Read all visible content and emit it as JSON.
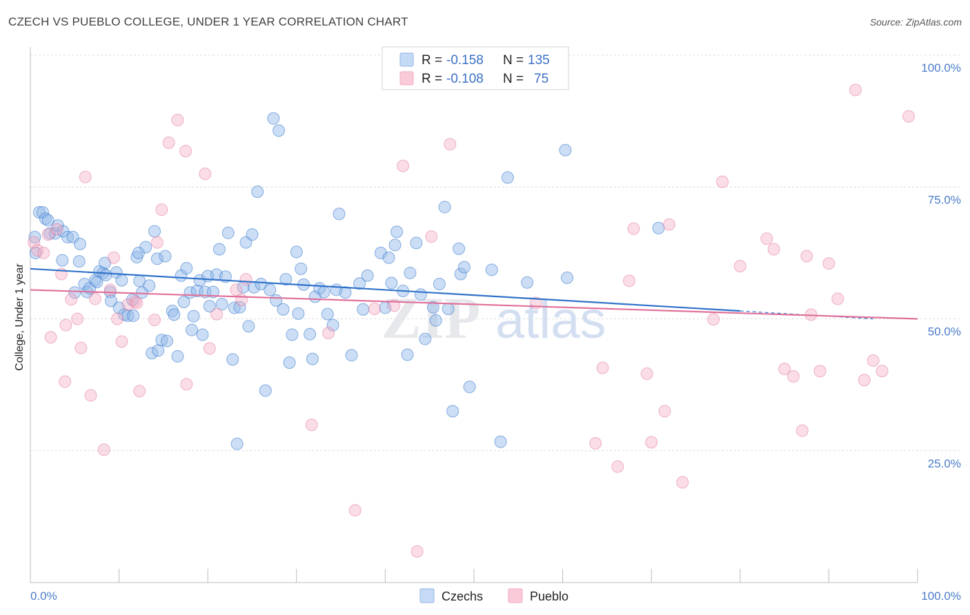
{
  "header": {
    "title": "CZECH VS PUEBLO COLLEGE, UNDER 1 YEAR CORRELATION CHART",
    "source": "Source: ZipAtlas.com"
  },
  "legend": {
    "czech": {
      "r_label": "R =",
      "r_value": "-0.158",
      "n_label": "N =",
      "n_value": "135"
    },
    "pueblo": {
      "r_label": "R =",
      "r_value": "-0.108",
      "n_label": "N =",
      "n_value": "75"
    }
  },
  "bottom_legend": {
    "czech": "Czechs",
    "pueblo": "Pueblo"
  },
  "watermark": {
    "zip": "ZIP",
    "atlas": "atlas"
  },
  "chart_data": {
    "type": "scatter",
    "title": "CZECH VS PUEBLO COLLEGE, UNDER 1 YEAR CORRELATION CHART",
    "xlabel": "",
    "ylabel": "College, Under 1 year",
    "xlim": [
      0,
      100
    ],
    "ylim": [
      0,
      100
    ],
    "x_tick_labels": [
      "0.0%",
      "100.0%"
    ],
    "y_ticks": [
      25,
      50,
      75,
      100
    ],
    "y_tick_labels": [
      "25.0%",
      "50.0%",
      "75.0%",
      "100.0%"
    ],
    "grid": true,
    "legend_position": "top-center",
    "colors": {
      "czech": "#8fb6e8",
      "czech_line": "#2f72c9",
      "pueblo": "#f3a9c0",
      "pueblo_line": "#e0709a"
    },
    "series": [
      {
        "name": "Czechs",
        "r": -0.158,
        "n": 135,
        "trend": {
          "x": [
            0,
            80
          ],
          "y": [
            59.5,
            51.5
          ],
          "dashed_to_x": 95,
          "dashed_to_y": 50.0
        },
        "points": [
          [
            0.5,
            65.5
          ],
          [
            0.6,
            62.5
          ],
          [
            1.0,
            70.2
          ],
          [
            1.4,
            70.2
          ],
          [
            1.7,
            69.0
          ],
          [
            2.0,
            68.7
          ],
          [
            2.2,
            66.2
          ],
          [
            2.8,
            66.2
          ],
          [
            3.1,
            67.7
          ],
          [
            3.7,
            66.6
          ],
          [
            3.6,
            61.1
          ],
          [
            4.2,
            65.5
          ],
          [
            4.8,
            65.5
          ],
          [
            5.5,
            60.9
          ],
          [
            5.6,
            64.2
          ],
          [
            6.1,
            56.6
          ],
          [
            6.4,
            55.1
          ],
          [
            6.7,
            55.8
          ],
          [
            7.3,
            57.3
          ],
          [
            7.5,
            57.0
          ],
          [
            7.8,
            59.0
          ],
          [
            8.2,
            58.7
          ],
          [
            8.4,
            60.6
          ],
          [
            8.5,
            58.3
          ],
          [
            9.0,
            55.1
          ],
          [
            9.1,
            53.4
          ],
          [
            9.7,
            58.8
          ],
          [
            10.0,
            52.1
          ],
          [
            10.3,
            57.3
          ],
          [
            10.6,
            50.8
          ],
          [
            11.0,
            50.6
          ],
          [
            11.5,
            53.6
          ],
          [
            11.6,
            50.6
          ],
          [
            12.0,
            61.7
          ],
          [
            12.2,
            62.5
          ],
          [
            12.3,
            57.2
          ],
          [
            12.6,
            55.0
          ],
          [
            13.0,
            63.6
          ],
          [
            13.4,
            56.3
          ],
          [
            13.7,
            43.5
          ],
          [
            14.0,
            66.6
          ],
          [
            14.3,
            61.4
          ],
          [
            14.4,
            44.0
          ],
          [
            14.8,
            46.0
          ],
          [
            15.2,
            61.9
          ],
          [
            15.4,
            45.8
          ],
          [
            16.0,
            51.5
          ],
          [
            16.2,
            50.8
          ],
          [
            16.6,
            42.9
          ],
          [
            17.0,
            58.2
          ],
          [
            17.3,
            53.2
          ],
          [
            17.6,
            59.6
          ],
          [
            18.0,
            55.0
          ],
          [
            18.2,
            47.9
          ],
          [
            18.4,
            50.5
          ],
          [
            18.8,
            55.3
          ],
          [
            19.1,
            57.3
          ],
          [
            19.4,
            47.0
          ],
          [
            19.7,
            55.1
          ],
          [
            20.0,
            58.1
          ],
          [
            20.2,
            52.4
          ],
          [
            20.6,
            55.1
          ],
          [
            21.0,
            58.4
          ],
          [
            21.3,
            63.2
          ],
          [
            21.6,
            52.8
          ],
          [
            22.0,
            58.0
          ],
          [
            22.3,
            66.3
          ],
          [
            22.8,
            42.3
          ],
          [
            23.0,
            52.1
          ],
          [
            23.3,
            26.3
          ],
          [
            23.6,
            52.2
          ],
          [
            24.0,
            56.0
          ],
          [
            24.3,
            64.5
          ],
          [
            24.6,
            48.6
          ],
          [
            25.0,
            66.0
          ],
          [
            25.2,
            56.0
          ],
          [
            25.6,
            74.1
          ],
          [
            26.0,
            56.6
          ],
          [
            26.5,
            36.4
          ],
          [
            27.0,
            55.5
          ],
          [
            27.4,
            88.0
          ],
          [
            27.7,
            53.5
          ],
          [
            28.0,
            85.7
          ],
          [
            28.5,
            51.8
          ],
          [
            28.8,
            57.5
          ],
          [
            29.2,
            41.7
          ],
          [
            29.5,
            47.0
          ],
          [
            30.0,
            62.7
          ],
          [
            30.2,
            51.0
          ],
          [
            30.5,
            59.5
          ],
          [
            30.8,
            56.5
          ],
          [
            31.5,
            47.1
          ],
          [
            31.8,
            42.4
          ],
          [
            32.1,
            54.2
          ],
          [
            32.6,
            55.8
          ],
          [
            33.1,
            55.1
          ],
          [
            33.5,
            50.9
          ],
          [
            34.1,
            48.8
          ],
          [
            34.5,
            55.5
          ],
          [
            34.8,
            69.9
          ],
          [
            35.5,
            55.0
          ],
          [
            36.2,
            43.1
          ],
          [
            37.1,
            56.7
          ],
          [
            37.5,
            51.8
          ],
          [
            38.0,
            58.2
          ],
          [
            39.5,
            62.5
          ],
          [
            40.0,
            52.1
          ],
          [
            40.4,
            61.6
          ],
          [
            40.7,
            56.8
          ],
          [
            41.1,
            64.0
          ],
          [
            41.3,
            66.5
          ],
          [
            42.0,
            55.3
          ],
          [
            42.5,
            43.2
          ],
          [
            42.8,
            58.7
          ],
          [
            43.5,
            64.4
          ],
          [
            44.0,
            54.6
          ],
          [
            44.5,
            46.2
          ],
          [
            45.4,
            52.2
          ],
          [
            45.7,
            49.7
          ],
          [
            46.1,
            56.6
          ],
          [
            46.7,
            71.2
          ],
          [
            47.1,
            51.9
          ],
          [
            47.6,
            32.5
          ],
          [
            48.3,
            63.3
          ],
          [
            48.5,
            58.5
          ],
          [
            48.9,
            59.8
          ],
          [
            49.5,
            37.1
          ],
          [
            52.0,
            59.3
          ],
          [
            53.0,
            26.7
          ],
          [
            53.8,
            76.8
          ],
          [
            56.0,
            56.9
          ],
          [
            60.3,
            82.0
          ],
          [
            60.5,
            57.8
          ],
          [
            70.8,
            67.2
          ],
          [
            5.0,
            55.0
          ]
        ]
      },
      {
        "name": "Pueblo",
        "r": -0.108,
        "n": 75,
        "trend": {
          "x": [
            0,
            100
          ],
          "y": [
            55.5,
            50.0
          ]
        },
        "points": [
          [
            0.4,
            64.5
          ],
          [
            0.8,
            63.0
          ],
          [
            1.5,
            62.5
          ],
          [
            2.0,
            66.0
          ],
          [
            2.3,
            46.5
          ],
          [
            3.0,
            67.0
          ],
          [
            3.5,
            58.5
          ],
          [
            3.9,
            38.1
          ],
          [
            4.0,
            48.8
          ],
          [
            4.6,
            53.7
          ],
          [
            5.3,
            50.0
          ],
          [
            5.7,
            44.5
          ],
          [
            6.2,
            76.9
          ],
          [
            6.8,
            35.5
          ],
          [
            7.3,
            53.8
          ],
          [
            8.3,
            25.2
          ],
          [
            9.0,
            55.5
          ],
          [
            9.4,
            61.6
          ],
          [
            9.8,
            50.0
          ],
          [
            10.3,
            45.7
          ],
          [
            11.0,
            52.7
          ],
          [
            11.8,
            53.3
          ],
          [
            12.0,
            53.0
          ],
          [
            12.3,
            36.3
          ],
          [
            14.0,
            49.8
          ],
          [
            14.3,
            64.5
          ],
          [
            14.8,
            70.7
          ],
          [
            15.6,
            83.4
          ],
          [
            16.6,
            87.7
          ],
          [
            17.5,
            81.8
          ],
          [
            17.6,
            37.6
          ],
          [
            19.7,
            77.5
          ],
          [
            20.2,
            44.4
          ],
          [
            21.0,
            50.9
          ],
          [
            23.2,
            55.5
          ],
          [
            23.8,
            53.6
          ],
          [
            24.3,
            57.5
          ],
          [
            31.7,
            29.9
          ],
          [
            33.6,
            47.3
          ],
          [
            36.6,
            13.7
          ],
          [
            38.8,
            51.9
          ],
          [
            41.0,
            52.5
          ],
          [
            42.0,
            79.0
          ],
          [
            43.6,
            5.9
          ],
          [
            45.2,
            65.6
          ],
          [
            47.3,
            83.1
          ],
          [
            57.0,
            53.0
          ],
          [
            63.7,
            26.4
          ],
          [
            64.5,
            40.7
          ],
          [
            66.2,
            22.0
          ],
          [
            67.5,
            57.2
          ],
          [
            68.0,
            67.1
          ],
          [
            69.5,
            39.6
          ],
          [
            70.0,
            26.6
          ],
          [
            71.5,
            32.5
          ],
          [
            72.0,
            67.9
          ],
          [
            73.5,
            19.0
          ],
          [
            77.0,
            49.9
          ],
          [
            78.0,
            76.0
          ],
          [
            80.0,
            60.0
          ],
          [
            83.0,
            65.2
          ],
          [
            83.8,
            63.2
          ],
          [
            85.0,
            40.5
          ],
          [
            86.0,
            39.1
          ],
          [
            87.0,
            28.8
          ],
          [
            87.5,
            61.9
          ],
          [
            88.0,
            50.8
          ],
          [
            89.0,
            40.1
          ],
          [
            90.0,
            60.5
          ],
          [
            91.0,
            53.8
          ],
          [
            93.0,
            93.4
          ],
          [
            94.0,
            38.4
          ],
          [
            95.0,
            42.1
          ],
          [
            96.0,
            40.1
          ],
          [
            99.0,
            88.4
          ]
        ]
      }
    ]
  }
}
